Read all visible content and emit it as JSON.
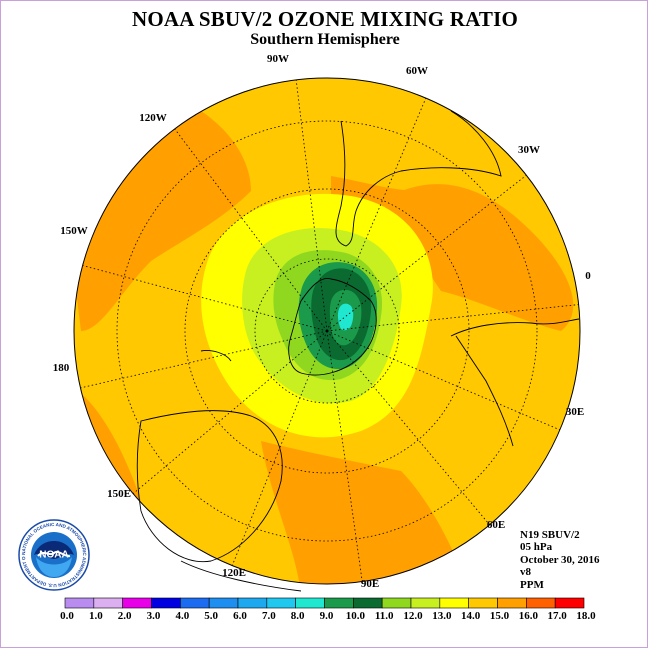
{
  "title": "NOAA SBUV/2 OZONE MIXING RATIO",
  "subtitle": "Southern Hemisphere",
  "longitude_labels": [
    "90W",
    "60W",
    "30W",
    "0",
    "30E",
    "60E",
    "90E",
    "120E",
    "150E",
    "180",
    "150W",
    "120W"
  ],
  "info": {
    "satellite": "N19 SBUV/2",
    "level": "05 hPa",
    "date": "October 30, 2016",
    "version": "v8",
    "units": "PPM"
  },
  "colorbar": {
    "labels": [
      "0.0",
      "1.0",
      "2.0",
      "3.0",
      "4.0",
      "5.0",
      "6.0",
      "7.0",
      "8.0",
      "9.0",
      "10.0",
      "11.0",
      "12.0",
      "13.0",
      "14.0",
      "15.0",
      "16.0",
      "17.0",
      "18.0"
    ],
    "colors": [
      "#b98cf0",
      "#dcb0f0",
      "#e800e8",
      "#0000e0",
      "#1b6cf0",
      "#1e8ef0",
      "#1ea8f0",
      "#20c8f0",
      "#20e8d0",
      "#1a9a4a",
      "#0a6a30",
      "#90d820",
      "#c8f020",
      "#ffff00",
      "#ffc800",
      "#ffa000",
      "#ff6000",
      "#ff0000",
      "#996633"
    ]
  },
  "logo": {
    "text": "NOAA",
    "ring_text": "NATIONAL OCEANIC AND ATMOSPHERIC ADMINISTRATION U.S. DEPARTMENT OF COMMERCE"
  }
}
